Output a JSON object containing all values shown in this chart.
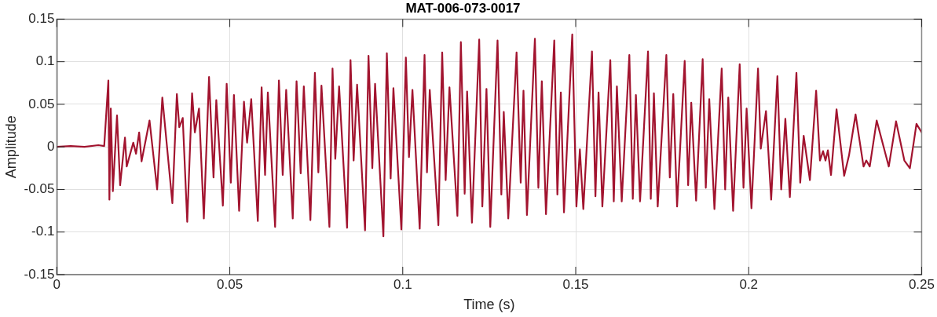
{
  "chart_data": {
    "type": "line",
    "title": "MAT-006-073-0017",
    "xlabel": "Time (s)",
    "ylabel": "Amplitude",
    "xlim": [
      0,
      0.25
    ],
    "xticks": [
      0,
      0.05,
      0.1,
      0.15,
      0.2,
      0.25
    ],
    "ylim": [
      -0.15,
      0.15
    ],
    "yticks": [
      -0.15,
      -0.1,
      -0.05,
      0,
      0.05,
      0.1,
      0.15
    ],
    "grid": true,
    "legend": false,
    "marker": "none",
    "line_style": "solid",
    "series": [
      {
        "color": "#a2142f",
        "x": [
          0,
          0.004,
          0.008,
          0.012,
          0.0137,
          0.0149,
          0.0152,
          0.0156,
          0.0162,
          0.0174,
          0.0183,
          0.0197,
          0.0202,
          0.0221,
          0.0229,
          0.0238,
          0.0245,
          0.0268,
          0.029,
          0.0305,
          0.0334,
          0.0347,
          0.0354,
          0.0364,
          0.0377,
          0.0391,
          0.0399,
          0.0411,
          0.0425,
          0.044,
          0.0453,
          0.0461,
          0.048,
          0.0491,
          0.0503,
          0.0512,
          0.0527,
          0.0541,
          0.055,
          0.0562,
          0.0581,
          0.0592,
          0.0602,
          0.061,
          0.0631,
          0.0642,
          0.0653,
          0.0663,
          0.0682,
          0.0693,
          0.0705,
          0.0714,
          0.0733,
          0.0746,
          0.0756,
          0.0765,
          0.0788,
          0.0797,
          0.0805,
          0.0816,
          0.0839,
          0.0849,
          0.0858,
          0.0868,
          0.0891,
          0.0901,
          0.0912,
          0.092,
          0.0944,
          0.0954,
          0.0965,
          0.0973,
          0.0996,
          0.1009,
          0.1018,
          0.1028,
          0.1049,
          0.1063,
          0.107,
          0.1078,
          0.1103,
          0.1114,
          0.1124,
          0.1135,
          0.1158,
          0.1168,
          0.1179,
          0.1186,
          0.12,
          0.1221,
          0.123,
          0.1242,
          0.1253,
          0.1274,
          0.1285,
          0.1292,
          0.1305,
          0.1329,
          0.1341,
          0.1349,
          0.1359,
          0.1382,
          0.1392,
          0.1402,
          0.1414,
          0.1438,
          0.1447,
          0.1457,
          0.1466,
          0.149,
          0.1502,
          0.1512,
          0.1522,
          0.1547,
          0.1557,
          0.1566,
          0.1577,
          0.16,
          0.161,
          0.1619,
          0.1633,
          0.1655,
          0.1665,
          0.1674,
          0.1686,
          0.1709,
          0.1717,
          0.1726,
          0.1737,
          0.1762,
          0.1772,
          0.1782,
          0.1793,
          0.1815,
          0.1825,
          0.1834,
          0.1848,
          0.1867,
          0.1876,
          0.1886,
          0.1901,
          0.1922,
          0.1932,
          0.1941,
          0.1955,
          0.1974,
          0.1985,
          0.1994,
          0.2008,
          0.2027,
          0.2035,
          0.205,
          0.2065,
          0.2083,
          0.2094,
          0.2106,
          0.2119,
          0.2138,
          0.2149,
          0.2159,
          0.2177,
          0.2195,
          0.2206,
          0.2215,
          0.2222,
          0.2229,
          0.2238,
          0.2254,
          0.2276,
          0.229,
          0.2309,
          0.2332,
          0.234,
          0.235,
          0.237,
          0.2405,
          0.2426,
          0.245,
          0.2466,
          0.2485,
          0.25
        ],
        "values": [
          0,
          0.001,
          0,
          0.002,
          0.001,
          0.078,
          -0.062,
          0.045,
          -0.052,
          0.037,
          -0.045,
          0.011,
          -0.023,
          0.005,
          -0.008,
          0.017,
          -0.017,
          0.031,
          -0.05,
          0.058,
          -0.066,
          0.062,
          0.023,
          0.034,
          -0.088,
          0.063,
          0.017,
          0.045,
          -0.084,
          0.082,
          -0.036,
          0.055,
          -0.069,
          0.074,
          -0.042,
          0.061,
          -0.075,
          0.053,
          0.005,
          0.056,
          -0.087,
          0.07,
          -0.033,
          0.064,
          -0.094,
          0.078,
          -0.033,
          0.067,
          -0.084,
          0.077,
          -0.031,
          0.071,
          -0.086,
          0.087,
          -0.03,
          0.072,
          -0.094,
          0.092,
          -0.014,
          0.071,
          -0.095,
          0.102,
          -0.016,
          0.073,
          -0.098,
          0.107,
          -0.025,
          0.074,
          -0.105,
          0.11,
          -0.037,
          0.069,
          -0.097,
          0.105,
          -0.012,
          0.067,
          -0.096,
          0.108,
          -0.03,
          0.067,
          -0.092,
          0.111,
          -0.039,
          0.07,
          -0.081,
          0.123,
          -0.055,
          0.065,
          -0.089,
          0.126,
          -0.07,
          0.068,
          -0.094,
          0.125,
          -0.056,
          0.041,
          -0.084,
          0.111,
          -0.042,
          0.066,
          -0.08,
          0.127,
          -0.048,
          0.077,
          -0.079,
          0.125,
          -0.056,
          0.064,
          -0.077,
          0.132,
          -0.07,
          -0.003,
          -0.073,
          0.112,
          -0.058,
          0.064,
          -0.07,
          0.102,
          -0.064,
          0.071,
          -0.064,
          0.108,
          -0.061,
          0.061,
          -0.064,
          0.112,
          -0.061,
          0.063,
          -0.07,
          0.108,
          -0.036,
          0.062,
          -0.07,
          0.101,
          -0.045,
          0.052,
          -0.063,
          0.103,
          -0.048,
          0.056,
          -0.073,
          0.092,
          -0.05,
          0.058,
          -0.075,
          0.097,
          -0.048,
          0.045,
          -0.072,
          0.092,
          -0.002,
          0.042,
          -0.062,
          0.083,
          -0.05,
          0.033,
          -0.059,
          0.087,
          -0.042,
          0.013,
          -0.039,
          0.066,
          -0.016,
          -0.005,
          -0.016,
          -0.004,
          -0.033,
          0.044,
          -0.034,
          -0.01,
          0.038,
          -0.023,
          -0.016,
          -0.023,
          0.031,
          -0.023,
          0.03,
          -0.016,
          -0.025,
          0.027,
          0.017
        ]
      }
    ]
  }
}
